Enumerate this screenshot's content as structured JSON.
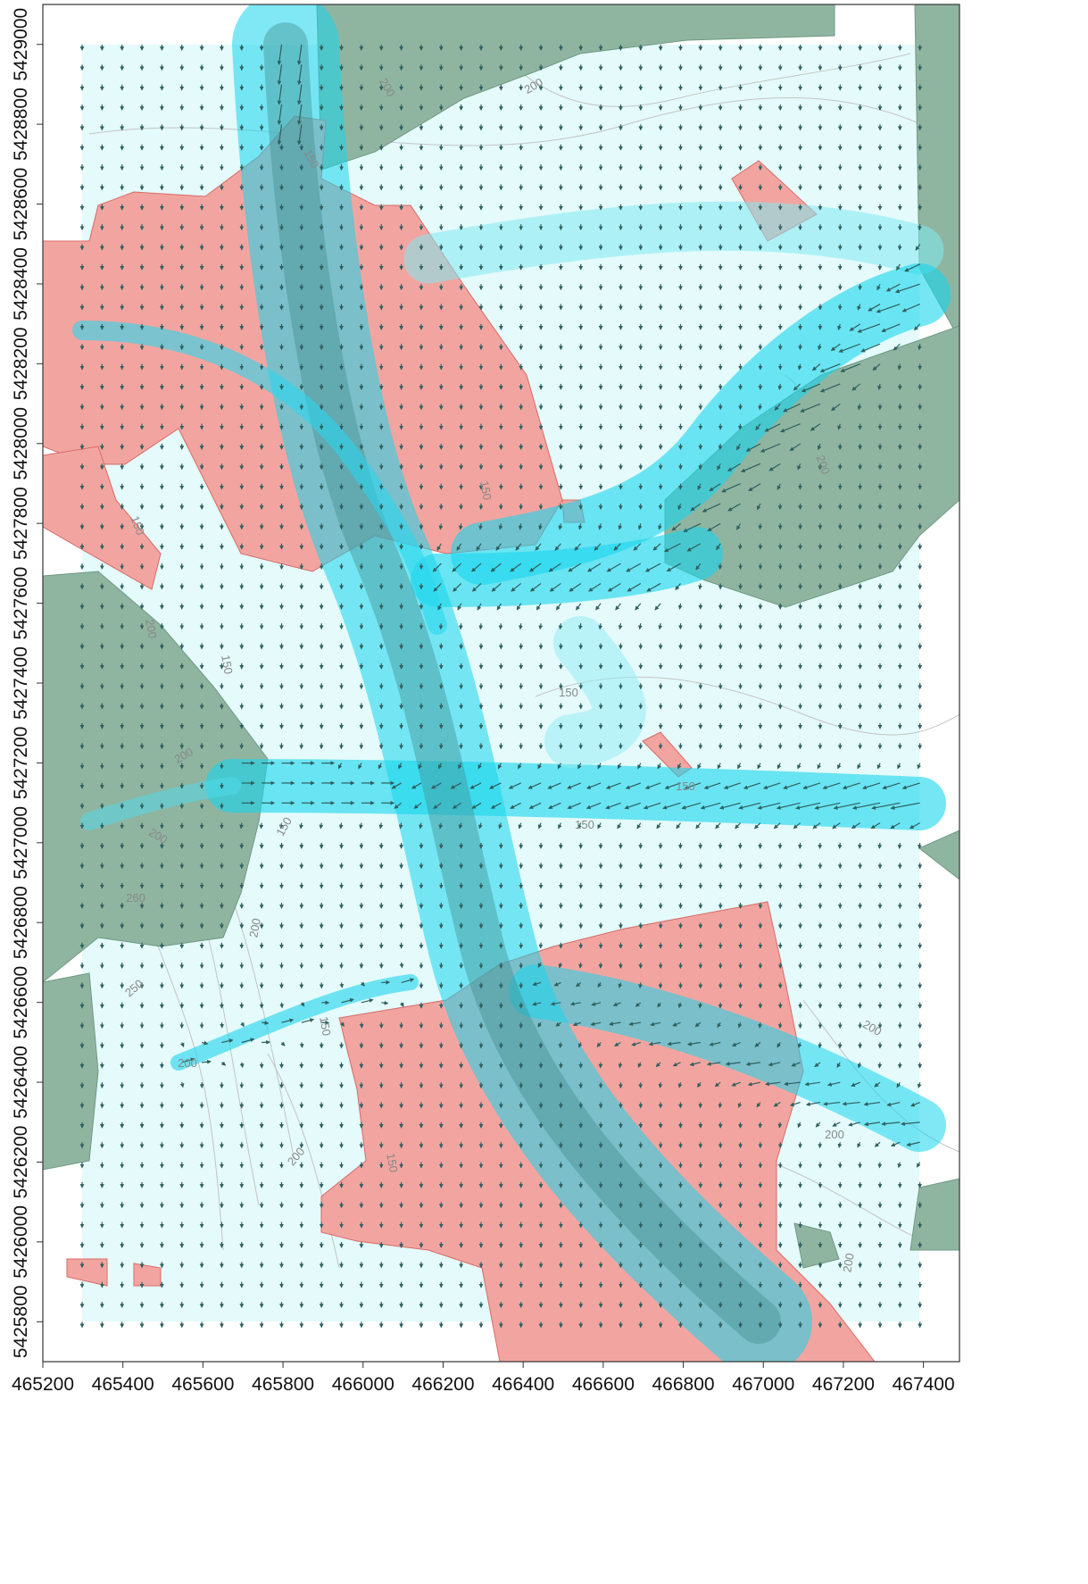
{
  "map": {
    "x_axis": {
      "xlim": [
        465200,
        467490
      ],
      "xticks": [
        465200,
        465400,
        465600,
        465800,
        466000,
        466200,
        466400,
        466600,
        466800,
        467000,
        467200,
        467400
      ]
    },
    "y_axis": {
      "ylim": [
        5425700,
        5429100
      ],
      "yticks": [
        5425800,
        5426000,
        5426200,
        5426400,
        5426600,
        5426800,
        5427000,
        5427200,
        5427400,
        5427600,
        5427800,
        5428000,
        5428200,
        5428400,
        5428600,
        5428800,
        5429000
      ]
    },
    "contour_labels": [
      "200",
      "200",
      "150",
      "150",
      "150",
      "200",
      "150",
      "150",
      "150",
      "150",
      "200",
      "200",
      "150",
      "260",
      "200",
      "250",
      "150",
      "200",
      "200",
      "150",
      "200",
      "200",
      "200",
      "200"
    ]
  }
}
